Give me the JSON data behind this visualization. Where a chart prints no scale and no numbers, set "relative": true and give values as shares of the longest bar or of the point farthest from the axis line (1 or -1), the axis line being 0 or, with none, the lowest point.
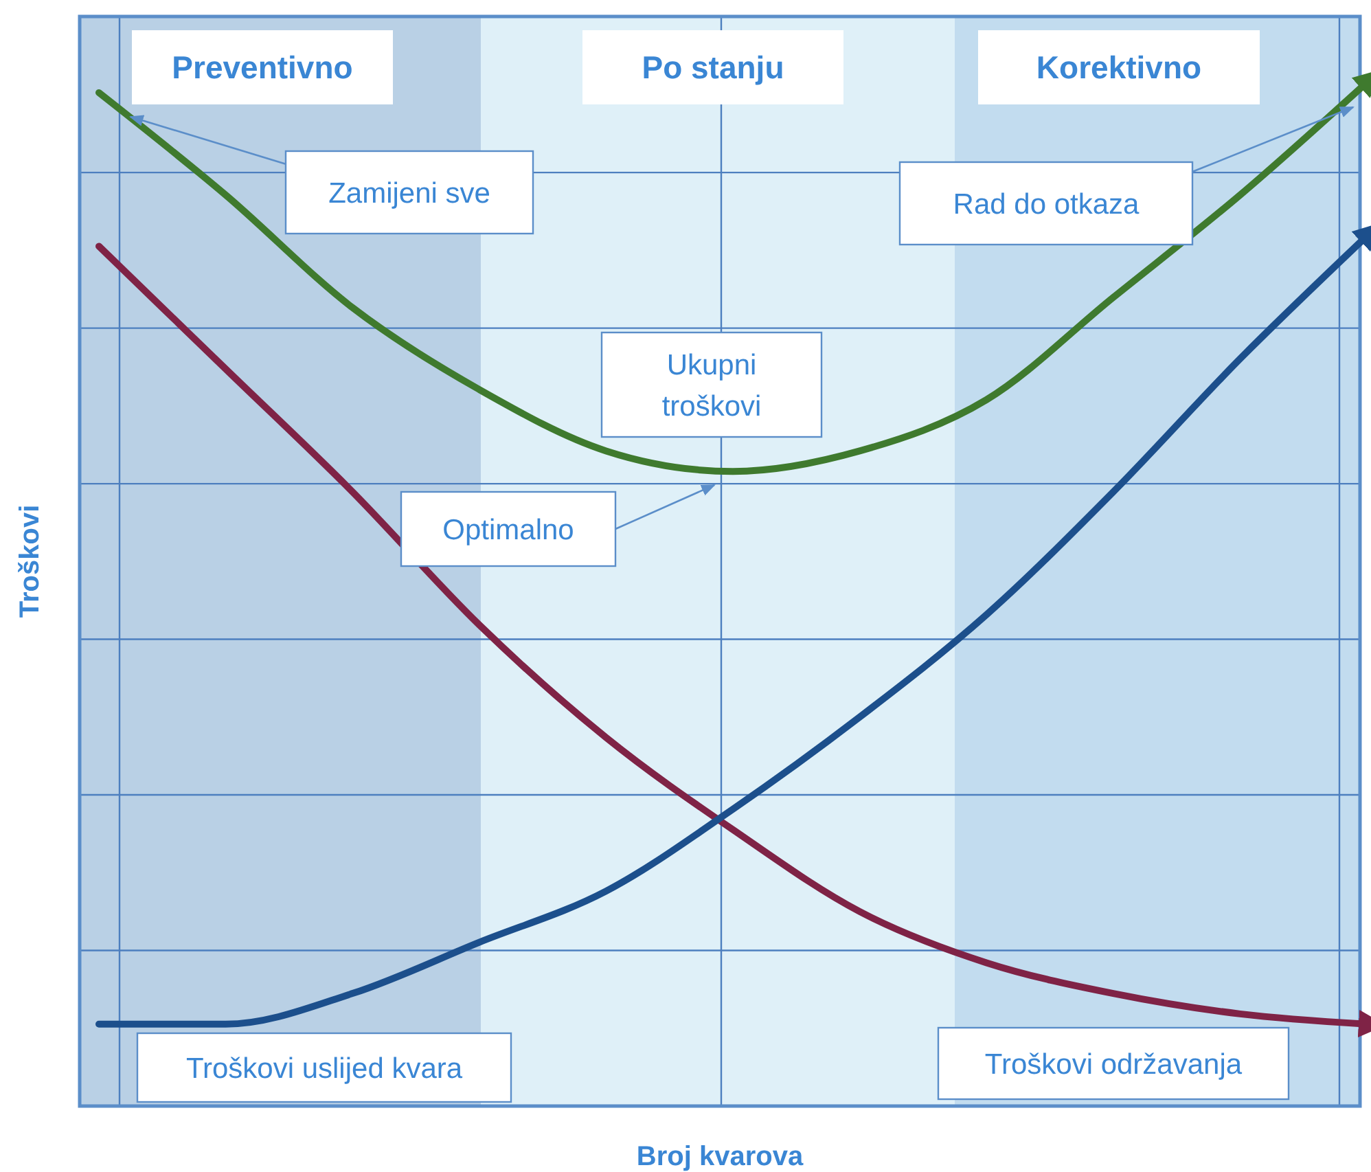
{
  "chart_data": {
    "type": "line",
    "relative": true,
    "xlabel": "Broj kvarova",
    "ylabel": "Troškovi",
    "categories": [
      null,
      null,
      null,
      null,
      null,
      null,
      null,
      null,
      null,
      null,
      null
    ],
    "series": [
      {
        "name": "Ukupni troškovi",
        "color": "#3f7a2e",
        "values": [
          0.99,
          0.89,
          0.78,
          0.7,
          0.64,
          0.62,
          0.64,
          0.69,
          0.79,
          0.89,
          1
        ]
      },
      {
        "name": "Troškovi održavanja",
        "color": "#7f2346",
        "values": [
          0.84,
          0.72,
          0.6,
          0.47,
          0.36,
          0.27,
          0.19,
          0.14,
          0.11,
          0.09,
          0.08
        ]
      },
      {
        "name": "Troškovi uslijed kvara",
        "color": "#1c4f8c",
        "values": [
          0.08,
          0.08,
          0.11,
          0.16,
          0.21,
          0.29,
          0.38,
          0.48,
          0.6,
          0.73,
          0.85
        ]
      }
    ],
    "annotations": [
      "Preventivno",
      "Po stanju",
      "Korektivno",
      "Zamijeni sve",
      "Rad do otkaza",
      "Optimalno"
    ],
    "ref_lines": [
      {
        "axis": "y",
        "value": 0.152
      },
      {
        "axis": "y",
        "value": 0.304
      },
      {
        "axis": "y",
        "value": 0.456
      },
      {
        "axis": "y",
        "value": 0.608
      },
      {
        "axis": "y",
        "value": 0.76
      },
      {
        "axis": "y",
        "value": 0.912
      }
    ],
    "line_style": "solid",
    "marker": "none",
    "legend": false
  }
}
